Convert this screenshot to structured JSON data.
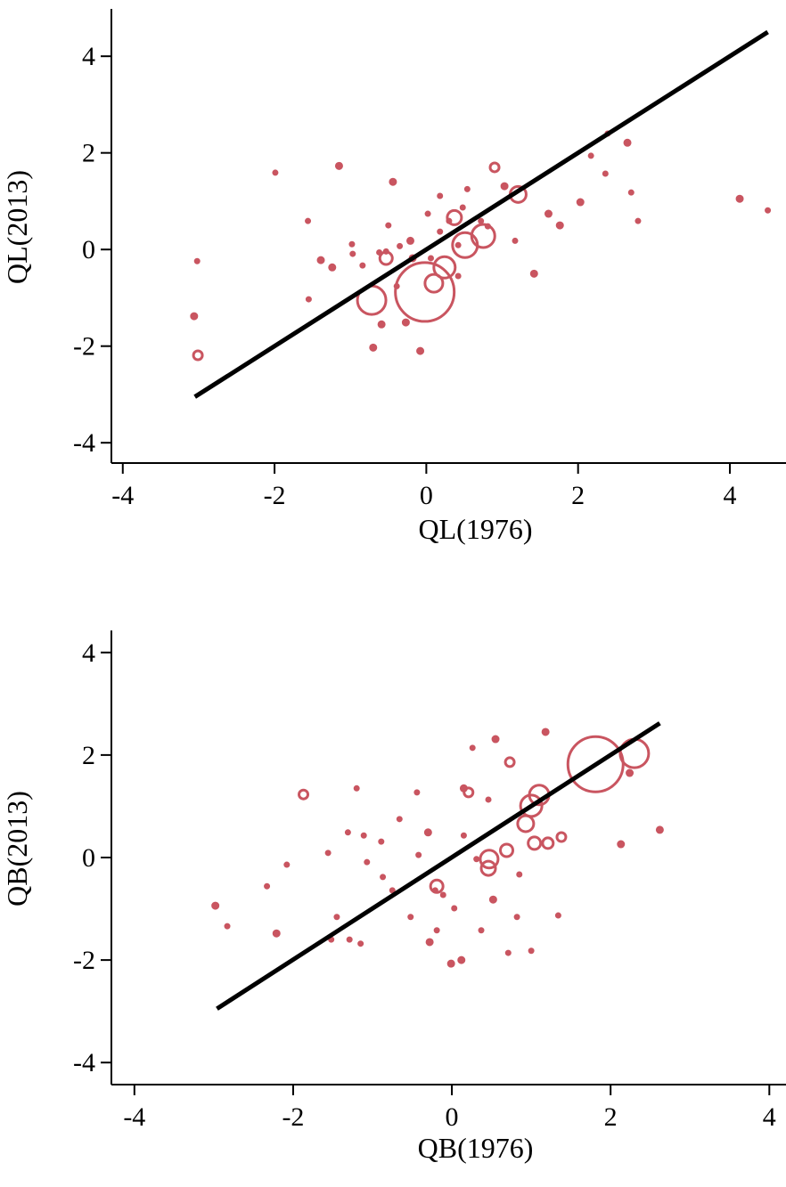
{
  "chart_data": [
    {
      "type": "scatter",
      "x_label": "QL(1976)",
      "y_label": "QL(2013)",
      "color": "#c95560",
      "xlim": [
        -4.15,
        4.74
      ],
      "ylim": [
        -4.42,
        4.98
      ],
      "xticks": [
        -4,
        -2,
        0,
        2,
        4
      ],
      "yticks": [
        -4,
        -2,
        0,
        2,
        4
      ],
      "x": [
        -3.02,
        -3.06,
        -3.01,
        -1.99,
        -1.15,
        -1.56,
        -1.55,
        -1.39,
        -1.24,
        -0.98,
        -0.97,
        -0.84,
        -0.72,
        -0.7,
        -0.59,
        -0.44,
        -0.5,
        -0.27,
        -0.08,
        -0.02,
        0.1,
        -0.21,
        -0.18,
        0.02,
        0.18,
        0.3,
        0.37,
        0.48,
        0.54,
        0.51,
        0.24,
        0.42,
        0.75,
        0.9,
        1.03,
        1.21,
        0.81,
        1.42,
        1.61,
        1.76,
        2.03,
        2.17,
        2.36,
        2.39,
        2.65,
        2.7,
        2.79,
        4.13,
        4.5,
        -0.53,
        -0.62,
        -0.35,
        -0.39,
        -0.53,
        0.18,
        0.72,
        1.17,
        0.42,
        0.06
      ],
      "y": [
        -0.24,
        -1.38,
        -2.19,
        1.59,
        1.73,
        0.59,
        -1.03,
        -0.22,
        -0.37,
        0.11,
        -0.09,
        -0.33,
        -1.05,
        -2.03,
        -1.55,
        1.4,
        0.5,
        -1.51,
        -2.1,
        -0.88,
        -0.7,
        0.18,
        -0.18,
        0.74,
        1.11,
        0.59,
        0.66,
        0.87,
        1.25,
        0.09,
        -0.37,
        -0.55,
        0.28,
        1.7,
        1.31,
        1.14,
        0.48,
        -0.5,
        0.74,
        0.5,
        0.98,
        1.94,
        1.57,
        2.4,
        2.21,
        1.18,
        0.59,
        1.05,
        0.81,
        -0.18,
        -0.06,
        0.07,
        -0.76,
        -0.04,
        0.37,
        0.59,
        0.18,
        0.09,
        -0.18
      ],
      "sizes": [
        3,
        4,
        5,
        3,
        4,
        3,
        3,
        4,
        4,
        3,
        3,
        3,
        16,
        4,
        4,
        4,
        3,
        4,
        4,
        33,
        10,
        4,
        4,
        3,
        3,
        3,
        8,
        3,
        3,
        14,
        12,
        3,
        13,
        5,
        4,
        9,
        3,
        4,
        4,
        4,
        4,
        3,
        3,
        3,
        4,
        3,
        3,
        4,
        3,
        7,
        3,
        3,
        3,
        3,
        3,
        3,
        3,
        3,
        3
      ],
      "fit_line": {
        "x": [
          -3.05,
          4.5
        ],
        "y": [
          -3.05,
          4.5
        ]
      }
    },
    {
      "type": "scatter",
      "x_label": "QB(1976)",
      "y_label": "QB(2013)",
      "color": "#c95560",
      "xlim": [
        -4.29,
        4.21
      ],
      "ylim": [
        -4.43,
        4.43
      ],
      "xticks": [
        -4,
        -2,
        0,
        2,
        4
      ],
      "yticks": [
        -4,
        -2,
        0,
        2,
        4
      ],
      "x": [
        -2.98,
        -2.83,
        -2.33,
        -2.21,
        -2.08,
        -1.87,
        -1.52,
        -1.56,
        -1.45,
        -1.29,
        -1.2,
        -1.15,
        -1.31,
        -1.11,
        -1.07,
        -0.89,
        -0.87,
        -0.75,
        -0.66,
        -0.52,
        -0.44,
        -0.42,
        -0.3,
        -0.28,
        -0.21,
        -0.19,
        -0.11,
        -0.19,
        -0.01,
        0.12,
        0.15,
        0.21,
        0.26,
        0.31,
        0.37,
        0.46,
        0.55,
        0.47,
        0.46,
        0.52,
        0.73,
        0.69,
        0.93,
        1.0,
        1.1,
        1.04,
        1.21,
        1.18,
        1.38,
        1.34,
        1.0,
        0.71,
        0.82,
        1.81,
        2.3,
        2.24,
        2.13,
        2.62,
        0.85,
        0.15,
        0.03
      ],
      "y": [
        -0.94,
        -1.34,
        -0.56,
        -1.48,
        -0.14,
        1.23,
        -1.6,
        0.09,
        -1.16,
        -1.6,
        1.35,
        -1.68,
        0.49,
        0.43,
        -0.09,
        0.31,
        -0.38,
        -0.64,
        0.75,
        -1.16,
        1.27,
        0.05,
        0.49,
        -1.65,
        -0.64,
        -1.42,
        -0.73,
        -0.56,
        -2.07,
        -2.0,
        1.35,
        1.27,
        2.14,
        -0.03,
        -1.42,
        1.13,
        2.31,
        -0.03,
        -0.21,
        -0.82,
        1.86,
        0.14,
        0.66,
        1.01,
        1.22,
        0.28,
        0.28,
        2.45,
        0.4,
        -1.13,
        -1.82,
        -1.86,
        -1.16,
        1.82,
        2.03,
        1.65,
        0.26,
        0.54,
        -0.33,
        0.43,
        -0.99
      ],
      "sizes": [
        4,
        3,
        3,
        4,
        3,
        5,
        3,
        3,
        3,
        3,
        3,
        3,
        3,
        3,
        3,
        3,
        3,
        3,
        3,
        3,
        3,
        3,
        4,
        4,
        3,
        3,
        3,
        7,
        4,
        4,
        4,
        5,
        3,
        3,
        3,
        3,
        4,
        10,
        8,
        4,
        5,
        7,
        9,
        12,
        11,
        7,
        6,
        4,
        5,
        3,
        3,
        3,
        3,
        31,
        16,
        4,
        4,
        4,
        3,
        3,
        3
      ],
      "fit_line": {
        "x": [
          -2.96,
          2.62
        ],
        "y": [
          -2.95,
          2.62
        ]
      }
    }
  ]
}
